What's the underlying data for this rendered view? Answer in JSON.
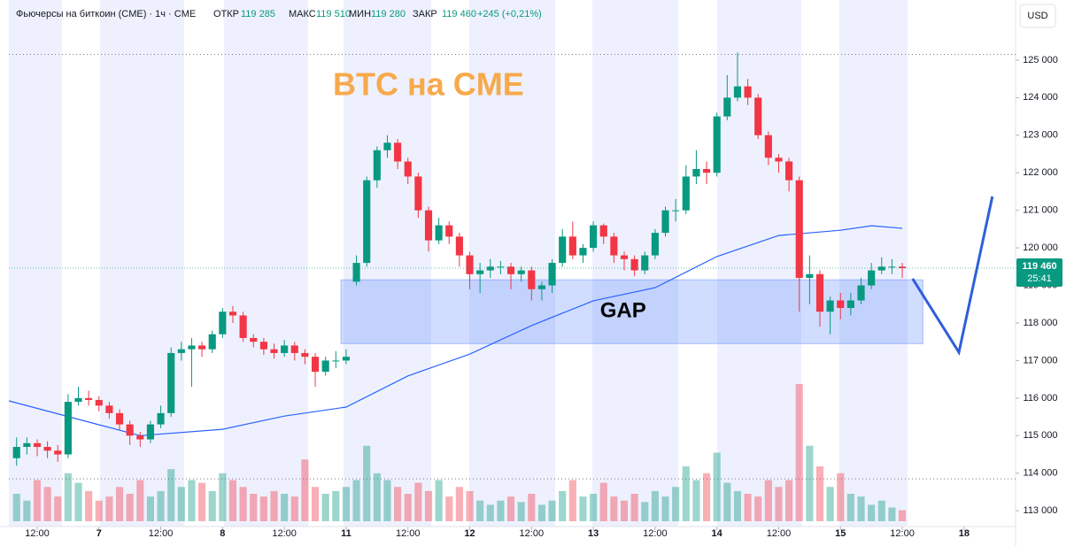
{
  "chart_data": {
    "type": "candlestick",
    "title": "BTC на CME",
    "header": {
      "symbol": "Фьючерсы на биткоин (CME) · 1ч · CME",
      "open_label": "ОТКР",
      "open": "119 285",
      "high_label": "МАКС",
      "high": "119 510",
      "low_label": "МИН",
      "low": "119 280",
      "close_label": "ЗАКР",
      "close": "119 460",
      "change": "+245 (+0,21%)"
    },
    "currency": "USD",
    "up_color": "#089981",
    "down_color": "#f23645",
    "xlim": [
      -5.5,
      190
    ],
    "ylim": [
      112580,
      126600
    ],
    "xticks": [
      {
        "value": 0,
        "label": "12:00"
      },
      {
        "value": 12,
        "label": "7"
      },
      {
        "value": 24,
        "label": "12:00"
      },
      {
        "value": 36,
        "label": "8"
      },
      {
        "value": 48,
        "label": "12:00"
      },
      {
        "value": 60,
        "label": "11"
      },
      {
        "value": 72,
        "label": "12:00"
      },
      {
        "value": 84,
        "label": "12"
      },
      {
        "value": 96,
        "label": "12:00"
      },
      {
        "value": 108,
        "label": "13"
      },
      {
        "value": 120,
        "label": "12:00"
      },
      {
        "value": 132,
        "label": "14"
      },
      {
        "value": 144,
        "label": "12:00"
      },
      {
        "value": 156,
        "label": "15"
      },
      {
        "value": 168,
        "label": "12:00"
      },
      {
        "value": 180,
        "label": "18"
      }
    ],
    "yticks": [
      {
        "value": 113000,
        "label": "113 000"
      },
      {
        "value": 114000,
        "label": "114 000"
      },
      {
        "value": 115000,
        "label": "115 000"
      },
      {
        "value": 116000,
        "label": "116 000"
      },
      {
        "value": 117000,
        "label": "117 000"
      },
      {
        "value": 118000,
        "label": "118 000"
      },
      {
        "value": 119000,
        "label": "119 000"
      },
      {
        "value": 120000,
        "label": "120 000"
      },
      {
        "value": 121000,
        "label": "121 000"
      },
      {
        "value": 122000,
        "label": "122 000"
      },
      {
        "value": 123000,
        "label": "123 000"
      },
      {
        "value": 124000,
        "label": "124 000"
      },
      {
        "value": 125000,
        "label": "125 000"
      }
    ],
    "x": [
      -4,
      -2,
      0,
      2,
      4,
      6,
      8,
      10,
      12,
      14,
      16,
      18,
      20,
      22,
      24,
      26,
      28,
      30,
      32,
      34,
      36,
      38,
      40,
      42,
      44,
      46,
      48,
      50,
      52,
      54,
      56,
      58,
      60,
      62,
      64,
      66,
      68,
      70,
      72,
      74,
      76,
      78,
      80,
      82,
      84,
      86,
      88,
      90,
      92,
      94,
      96,
      98,
      100,
      102,
      104,
      106,
      108,
      110,
      112,
      114,
      116,
      118,
      120,
      122,
      124,
      126,
      128,
      130,
      132,
      134,
      136,
      138,
      140,
      142,
      144,
      146,
      148,
      150,
      152,
      154,
      156,
      158,
      160,
      162,
      164,
      166,
      168
    ],
    "ohlc": [
      [
        114400,
        114950,
        114200,
        114700
      ],
      [
        114700,
        114950,
        114500,
        114800
      ],
      [
        114800,
        114900,
        114450,
        114700
      ],
      [
        114700,
        114850,
        114400,
        114600
      ],
      [
        114600,
        114750,
        114300,
        114500
      ],
      [
        114500,
        116100,
        114400,
        115900
      ],
      [
        115900,
        116300,
        115800,
        116000
      ],
      [
        116000,
        116200,
        115800,
        115950
      ],
      [
        115950,
        116050,
        115650,
        115800
      ],
      [
        115800,
        115900,
        115450,
        115600
      ],
      [
        115600,
        115700,
        115150,
        115300
      ],
      [
        115300,
        115400,
        114750,
        115000
      ],
      [
        115000,
        115100,
        114700,
        114900
      ],
      [
        114900,
        115400,
        114800,
        115300
      ],
      [
        115300,
        115800,
        115200,
        115600
      ],
      [
        115600,
        117350,
        115500,
        117200
      ],
      [
        117200,
        117500,
        117000,
        117300
      ],
      [
        117300,
        117600,
        116300,
        117400
      ],
      [
        117400,
        117500,
        117100,
        117300
      ],
      [
        117300,
        117800,
        117200,
        117700
      ],
      [
        117700,
        118400,
        117600,
        118300
      ],
      [
        118300,
        118450,
        118000,
        118200
      ],
      [
        118200,
        118300,
        117500,
        117600
      ],
      [
        117600,
        117700,
        117350,
        117500
      ],
      [
        117500,
        117600,
        117150,
        117300
      ],
      [
        117300,
        117450,
        117050,
        117200
      ],
      [
        117200,
        117550,
        117100,
        117400
      ],
      [
        117400,
        117500,
        117000,
        117200
      ],
      [
        117200,
        117300,
        116900,
        117100
      ],
      [
        117100,
        117200,
        116300,
        116700
      ],
      [
        116700,
        117100,
        116600,
        117000
      ],
      [
        117000,
        117250,
        116800,
        117000
      ],
      [
        117000,
        117300,
        116900,
        117100
      ],
      [
        119100,
        119800,
        119000,
        119600
      ],
      [
        119600,
        121900,
        119500,
        121800
      ],
      [
        121800,
        122700,
        121600,
        122600
      ],
      [
        122600,
        123000,
        122400,
        122800
      ],
      [
        122800,
        122900,
        122100,
        122300
      ],
      [
        122300,
        122400,
        121700,
        121900
      ],
      [
        121900,
        122000,
        120800,
        121000
      ],
      [
        121000,
        121100,
        119900,
        120200
      ],
      [
        120200,
        120800,
        120100,
        120600
      ],
      [
        120600,
        120700,
        120100,
        120300
      ],
      [
        120300,
        120400,
        119500,
        119800
      ],
      [
        119800,
        119900,
        118900,
        119300
      ],
      [
        119300,
        119600,
        118800,
        119400
      ],
      [
        119400,
        119700,
        119200,
        119500
      ],
      [
        119500,
        119650,
        119300,
        119500
      ],
      [
        119500,
        119600,
        118900,
        119300
      ],
      [
        119300,
        119500,
        119100,
        119400
      ],
      [
        119400,
        119500,
        118600,
        118900
      ],
      [
        118900,
        119100,
        118600,
        119000
      ],
      [
        119000,
        119700,
        118800,
        119600
      ],
      [
        119600,
        120500,
        119500,
        120300
      ],
      [
        120300,
        120700,
        119700,
        119800
      ],
      [
        119800,
        120100,
        119600,
        120000
      ],
      [
        120000,
        120700,
        119900,
        120600
      ],
      [
        120600,
        120650,
        120100,
        120300
      ],
      [
        120300,
        120400,
        119600,
        119800
      ],
      [
        119800,
        119900,
        119400,
        119700
      ],
      [
        119700,
        119800,
        119250,
        119400
      ],
      [
        119400,
        119900,
        119300,
        119800
      ],
      [
        119800,
        120500,
        119700,
        120400
      ],
      [
        120400,
        121100,
        120300,
        121000
      ],
      [
        121000,
        121300,
        120700,
        121000
      ],
      [
        121000,
        122200,
        120900,
        121900
      ],
      [
        121900,
        122600,
        121700,
        122100
      ],
      [
        122100,
        122300,
        121700,
        122000
      ],
      [
        122000,
        123600,
        121900,
        123500
      ],
      [
        123500,
        124600,
        123400,
        124000
      ],
      [
        124000,
        125200,
        123900,
        124300
      ],
      [
        124300,
        124500,
        123800,
        124000
      ],
      [
        124000,
        124100,
        122900,
        123000
      ],
      [
        123000,
        123100,
        122200,
        122400
      ],
      [
        122400,
        122500,
        122000,
        122300
      ],
      [
        122300,
        122400,
        121500,
        121800
      ],
      [
        121800,
        121900,
        118300,
        119200
      ],
      [
        119200,
        119800,
        118500,
        119300
      ],
      [
        119300,
        119400,
        117900,
        118300
      ],
      [
        118300,
        118700,
        117700,
        118600
      ],
      [
        118600,
        118800,
        118100,
        118400
      ],
      [
        118400,
        118800,
        118200,
        118600
      ],
      [
        118600,
        119200,
        118500,
        119000
      ],
      [
        119000,
        119600,
        118900,
        119400
      ],
      [
        119400,
        119750,
        119300,
        119500
      ],
      [
        119500,
        119700,
        119300,
        119500
      ],
      [
        119500,
        119600,
        119200,
        119460
      ]
    ],
    "volume": [
      20,
      15,
      30,
      25,
      18,
      35,
      28,
      22,
      15,
      18,
      25,
      20,
      30,
      18,
      22,
      38,
      25,
      30,
      28,
      22,
      35,
      30,
      25,
      20,
      18,
      22,
      20,
      18,
      45,
      25,
      20,
      22,
      25,
      30,
      55,
      35,
      30,
      25,
      20,
      28,
      22,
      30,
      18,
      25,
      22,
      15,
      12,
      15,
      18,
      14,
      20,
      12,
      15,
      22,
      30,
      18,
      20,
      28,
      18,
      15,
      20,
      14,
      22,
      18,
      25,
      40,
      30,
      35,
      50,
      28,
      22,
      20,
      18,
      30,
      25,
      30,
      100,
      55,
      40,
      25,
      35,
      20,
      18,
      12,
      15,
      10,
      8
    ],
    "ma": {
      "color": "#2962ff",
      "x": [
        -5.5,
        12,
        20,
        36,
        48,
        60,
        72,
        84,
        96,
        108,
        120,
        132,
        144,
        156,
        162,
        168
      ],
      "values": [
        115925,
        115290,
        115000,
        115170,
        115520,
        115760,
        116590,
        117170,
        117930,
        118590,
        118940,
        119770,
        120330,
        120470,
        120590,
        120520
      ]
    },
    "gap": {
      "label": "GAP",
      "x": [
        59,
        172
      ],
      "y": [
        117450,
        119150
      ]
    },
    "projection": {
      "color": "#2f5fd9",
      "x": [
        170,
        179,
        185.5
      ],
      "values": [
        119180,
        117220,
        121370
      ]
    },
    "levels": [
      125150,
      113850
    ],
    "last_price": {
      "value": 119460,
      "label": "119 460",
      "countdown": "25:41"
    }
  }
}
